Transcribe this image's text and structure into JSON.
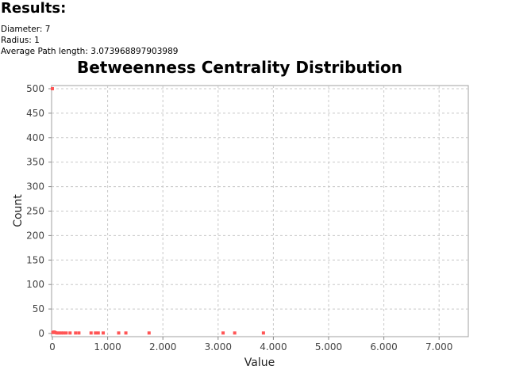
{
  "results": {
    "title": "Results:",
    "diameter": "Diameter: 7",
    "radius": "Radius: 1",
    "avg_path": "Average Path length: 3.073968897903989"
  },
  "chart_data": {
    "type": "scatter",
    "title": "Betweenness Centrality Distribution",
    "xlabel": "Value",
    "ylabel": "Count",
    "xlim": [
      0,
      7500
    ],
    "ylim": [
      0,
      500
    ],
    "grid": true,
    "x_ticks": [
      "0",
      "1.000",
      "2.000",
      "3.000",
      "4.000",
      "5.000",
      "6.000",
      "7.000"
    ],
    "y_ticks": [
      "0",
      "50",
      "100",
      "150",
      "200",
      "250",
      "300",
      "350",
      "400",
      "450",
      "500"
    ],
    "point_color": "#ff5555",
    "points": [
      {
        "x": 0,
        "y": 500
      },
      {
        "x": 10,
        "y": 2
      },
      {
        "x": 30,
        "y": 3
      },
      {
        "x": 50,
        "y": 2
      },
      {
        "x": 80,
        "y": 1
      },
      {
        "x": 120,
        "y": 1
      },
      {
        "x": 160,
        "y": 1
      },
      {
        "x": 200,
        "y": 1
      },
      {
        "x": 250,
        "y": 1
      },
      {
        "x": 320,
        "y": 1
      },
      {
        "x": 420,
        "y": 1
      },
      {
        "x": 480,
        "y": 1
      },
      {
        "x": 700,
        "y": 1
      },
      {
        "x": 780,
        "y": 1
      },
      {
        "x": 830,
        "y": 1
      },
      {
        "x": 920,
        "y": 1
      },
      {
        "x": 1200,
        "y": 1
      },
      {
        "x": 1330,
        "y": 1
      },
      {
        "x": 1750,
        "y": 1
      },
      {
        "x": 3090,
        "y": 1
      },
      {
        "x": 3300,
        "y": 1
      },
      {
        "x": 3820,
        "y": 1
      }
    ]
  }
}
